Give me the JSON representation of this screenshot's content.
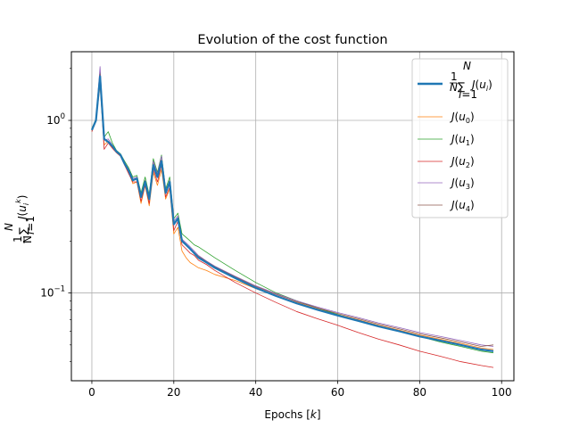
{
  "chart_data": {
    "type": "line",
    "title": "Evolution of the cost function",
    "xlabel": "Epochs [k]",
    "ylabel": "1/N Σ J(u_i^k)",
    "xlim": [
      -5,
      103
    ],
    "ylim": [
      0.031,
      2.5
    ],
    "yscale": "log",
    "grid": true,
    "legend_position": "top-right",
    "x_ticks": [
      0,
      20,
      40,
      60,
      80,
      100
    ],
    "x_tick_labels": [
      "0",
      "20",
      "40",
      "60",
      "80",
      "100"
    ],
    "y_ticks": [
      0.1,
      1
    ],
    "y_tick_labels": [
      "10^−1",
      "10^0"
    ],
    "legend": [
      "1/N Σ J(u_i)",
      "J(u_0)",
      "J(u_1)",
      "J(u_2)",
      "J(u_3)",
      "J(u_4)"
    ],
    "series": [
      {
        "name": "mean",
        "color": "#1f77b4",
        "x": [
          0,
          1,
          2,
          3,
          4,
          5,
          6,
          7,
          8,
          9,
          10,
          11,
          12,
          13,
          14,
          15,
          16,
          17,
          18,
          19,
          20,
          21,
          22,
          23,
          24,
          25,
          26,
          28,
          30,
          35,
          40,
          45,
          50,
          55,
          60,
          65,
          70,
          75,
          80,
          85,
          90,
          95,
          98
        ],
        "y": [
          0.88,
          1.0,
          1.8,
          0.78,
          0.75,
          0.71,
          0.66,
          0.63,
          0.56,
          0.51,
          0.45,
          0.46,
          0.36,
          0.44,
          0.35,
          0.55,
          0.47,
          0.58,
          0.38,
          0.44,
          0.25,
          0.27,
          0.2,
          0.19,
          0.18,
          0.17,
          0.16,
          0.15,
          0.14,
          0.122,
          0.107,
          0.096,
          0.087,
          0.08,
          0.074,
          0.069,
          0.064,
          0.06,
          0.056,
          0.053,
          0.05,
          0.047,
          0.046
        ]
      },
      {
        "name": "J(u_0)",
        "color": "#ff7f0e",
        "x": [
          0,
          1,
          2,
          3,
          4,
          5,
          6,
          7,
          8,
          9,
          10,
          11,
          12,
          13,
          14,
          15,
          16,
          17,
          18,
          19,
          20,
          21,
          22,
          23,
          24,
          25,
          26,
          28,
          30,
          35,
          40,
          45,
          50,
          55,
          60,
          65,
          70,
          75,
          80,
          85,
          90,
          95,
          98
        ],
        "y": [
          0.87,
          0.99,
          1.6,
          0.72,
          0.76,
          0.7,
          0.65,
          0.62,
          0.55,
          0.5,
          0.43,
          0.44,
          0.33,
          0.42,
          0.32,
          0.5,
          0.42,
          0.52,
          0.35,
          0.4,
          0.22,
          0.24,
          0.175,
          0.16,
          0.15,
          0.145,
          0.14,
          0.135,
          0.128,
          0.118,
          0.106,
          0.096,
          0.088,
          0.081,
          0.075,
          0.07,
          0.065,
          0.061,
          0.057,
          0.054,
          0.051,
          0.048,
          0.047
        ]
      },
      {
        "name": "J(u_1)",
        "color": "#2ca02c",
        "x": [
          0,
          1,
          2,
          3,
          4,
          5,
          6,
          7,
          8,
          9,
          10,
          11,
          12,
          13,
          14,
          15,
          16,
          17,
          18,
          19,
          20,
          21,
          22,
          23,
          24,
          25,
          26,
          28,
          30,
          35,
          40,
          45,
          50,
          55,
          60,
          65,
          70,
          75,
          80,
          85,
          90,
          95,
          98
        ],
        "y": [
          0.9,
          1.02,
          1.9,
          0.8,
          0.86,
          0.74,
          0.67,
          0.64,
          0.58,
          0.53,
          0.47,
          0.48,
          0.38,
          0.47,
          0.37,
          0.6,
          0.5,
          0.63,
          0.4,
          0.47,
          0.27,
          0.29,
          0.22,
          0.21,
          0.2,
          0.19,
          0.185,
          0.172,
          0.16,
          0.135,
          0.115,
          0.1,
          0.09,
          0.082,
          0.075,
          0.069,
          0.064,
          0.06,
          0.056,
          0.052,
          0.049,
          0.046,
          0.045
        ]
      },
      {
        "name": "J(u_2)",
        "color": "#d62728",
        "x": [
          0,
          1,
          2,
          3,
          4,
          5,
          6,
          7,
          8,
          9,
          10,
          11,
          12,
          13,
          14,
          15,
          16,
          17,
          18,
          19,
          20,
          21,
          22,
          23,
          24,
          25,
          26,
          28,
          30,
          35,
          40,
          45,
          50,
          55,
          60,
          65,
          70,
          75,
          80,
          85,
          90,
          95,
          98
        ],
        "y": [
          0.86,
          1.0,
          1.7,
          0.68,
          0.74,
          0.69,
          0.65,
          0.62,
          0.55,
          0.49,
          0.44,
          0.44,
          0.34,
          0.42,
          0.33,
          0.52,
          0.44,
          0.55,
          0.36,
          0.41,
          0.23,
          0.26,
          0.19,
          0.18,
          0.17,
          0.165,
          0.155,
          0.146,
          0.135,
          0.115,
          0.1,
          0.088,
          0.078,
          0.071,
          0.065,
          0.059,
          0.054,
          0.05,
          0.046,
          0.043,
          0.04,
          0.038,
          0.037
        ]
      },
      {
        "name": "J(u_3)",
        "color": "#9467bd",
        "x": [
          0,
          1,
          2,
          3,
          4,
          5,
          6,
          7,
          8,
          9,
          10,
          11,
          12,
          13,
          14,
          15,
          16,
          17,
          18,
          19,
          20,
          21,
          22,
          23,
          24,
          25,
          26,
          28,
          30,
          35,
          40,
          45,
          50,
          55,
          60,
          65,
          70,
          75,
          80,
          85,
          90,
          95,
          98
        ],
        "y": [
          0.89,
          1.01,
          2.05,
          0.77,
          0.78,
          0.72,
          0.66,
          0.63,
          0.57,
          0.52,
          0.46,
          0.47,
          0.37,
          0.45,
          0.36,
          0.58,
          0.49,
          0.62,
          0.39,
          0.45,
          0.26,
          0.28,
          0.205,
          0.195,
          0.185,
          0.175,
          0.165,
          0.153,
          0.143,
          0.125,
          0.11,
          0.099,
          0.09,
          0.083,
          0.077,
          0.072,
          0.067,
          0.063,
          0.059,
          0.056,
          0.053,
          0.05,
          0.049
        ]
      },
      {
        "name": "J(u_4)",
        "color": "#8c564b",
        "x": [
          0,
          1,
          2,
          3,
          4,
          5,
          6,
          7,
          8,
          9,
          10,
          11,
          12,
          13,
          14,
          15,
          16,
          17,
          18,
          19,
          20,
          21,
          22,
          23,
          24,
          25,
          26,
          28,
          30,
          35,
          40,
          45,
          50,
          55,
          60,
          65,
          70,
          75,
          80,
          85,
          90,
          95,
          98
        ],
        "y": [
          0.88,
          1.0,
          1.85,
          0.79,
          0.75,
          0.71,
          0.66,
          0.63,
          0.56,
          0.51,
          0.45,
          0.46,
          0.36,
          0.44,
          0.35,
          0.56,
          0.48,
          0.59,
          0.38,
          0.44,
          0.25,
          0.27,
          0.2,
          0.19,
          0.18,
          0.172,
          0.163,
          0.152,
          0.142,
          0.124,
          0.109,
          0.098,
          0.089,
          0.082,
          0.076,
          0.071,
          0.066,
          0.062,
          0.058,
          0.055,
          0.052,
          0.049,
          0.05
        ]
      }
    ]
  }
}
